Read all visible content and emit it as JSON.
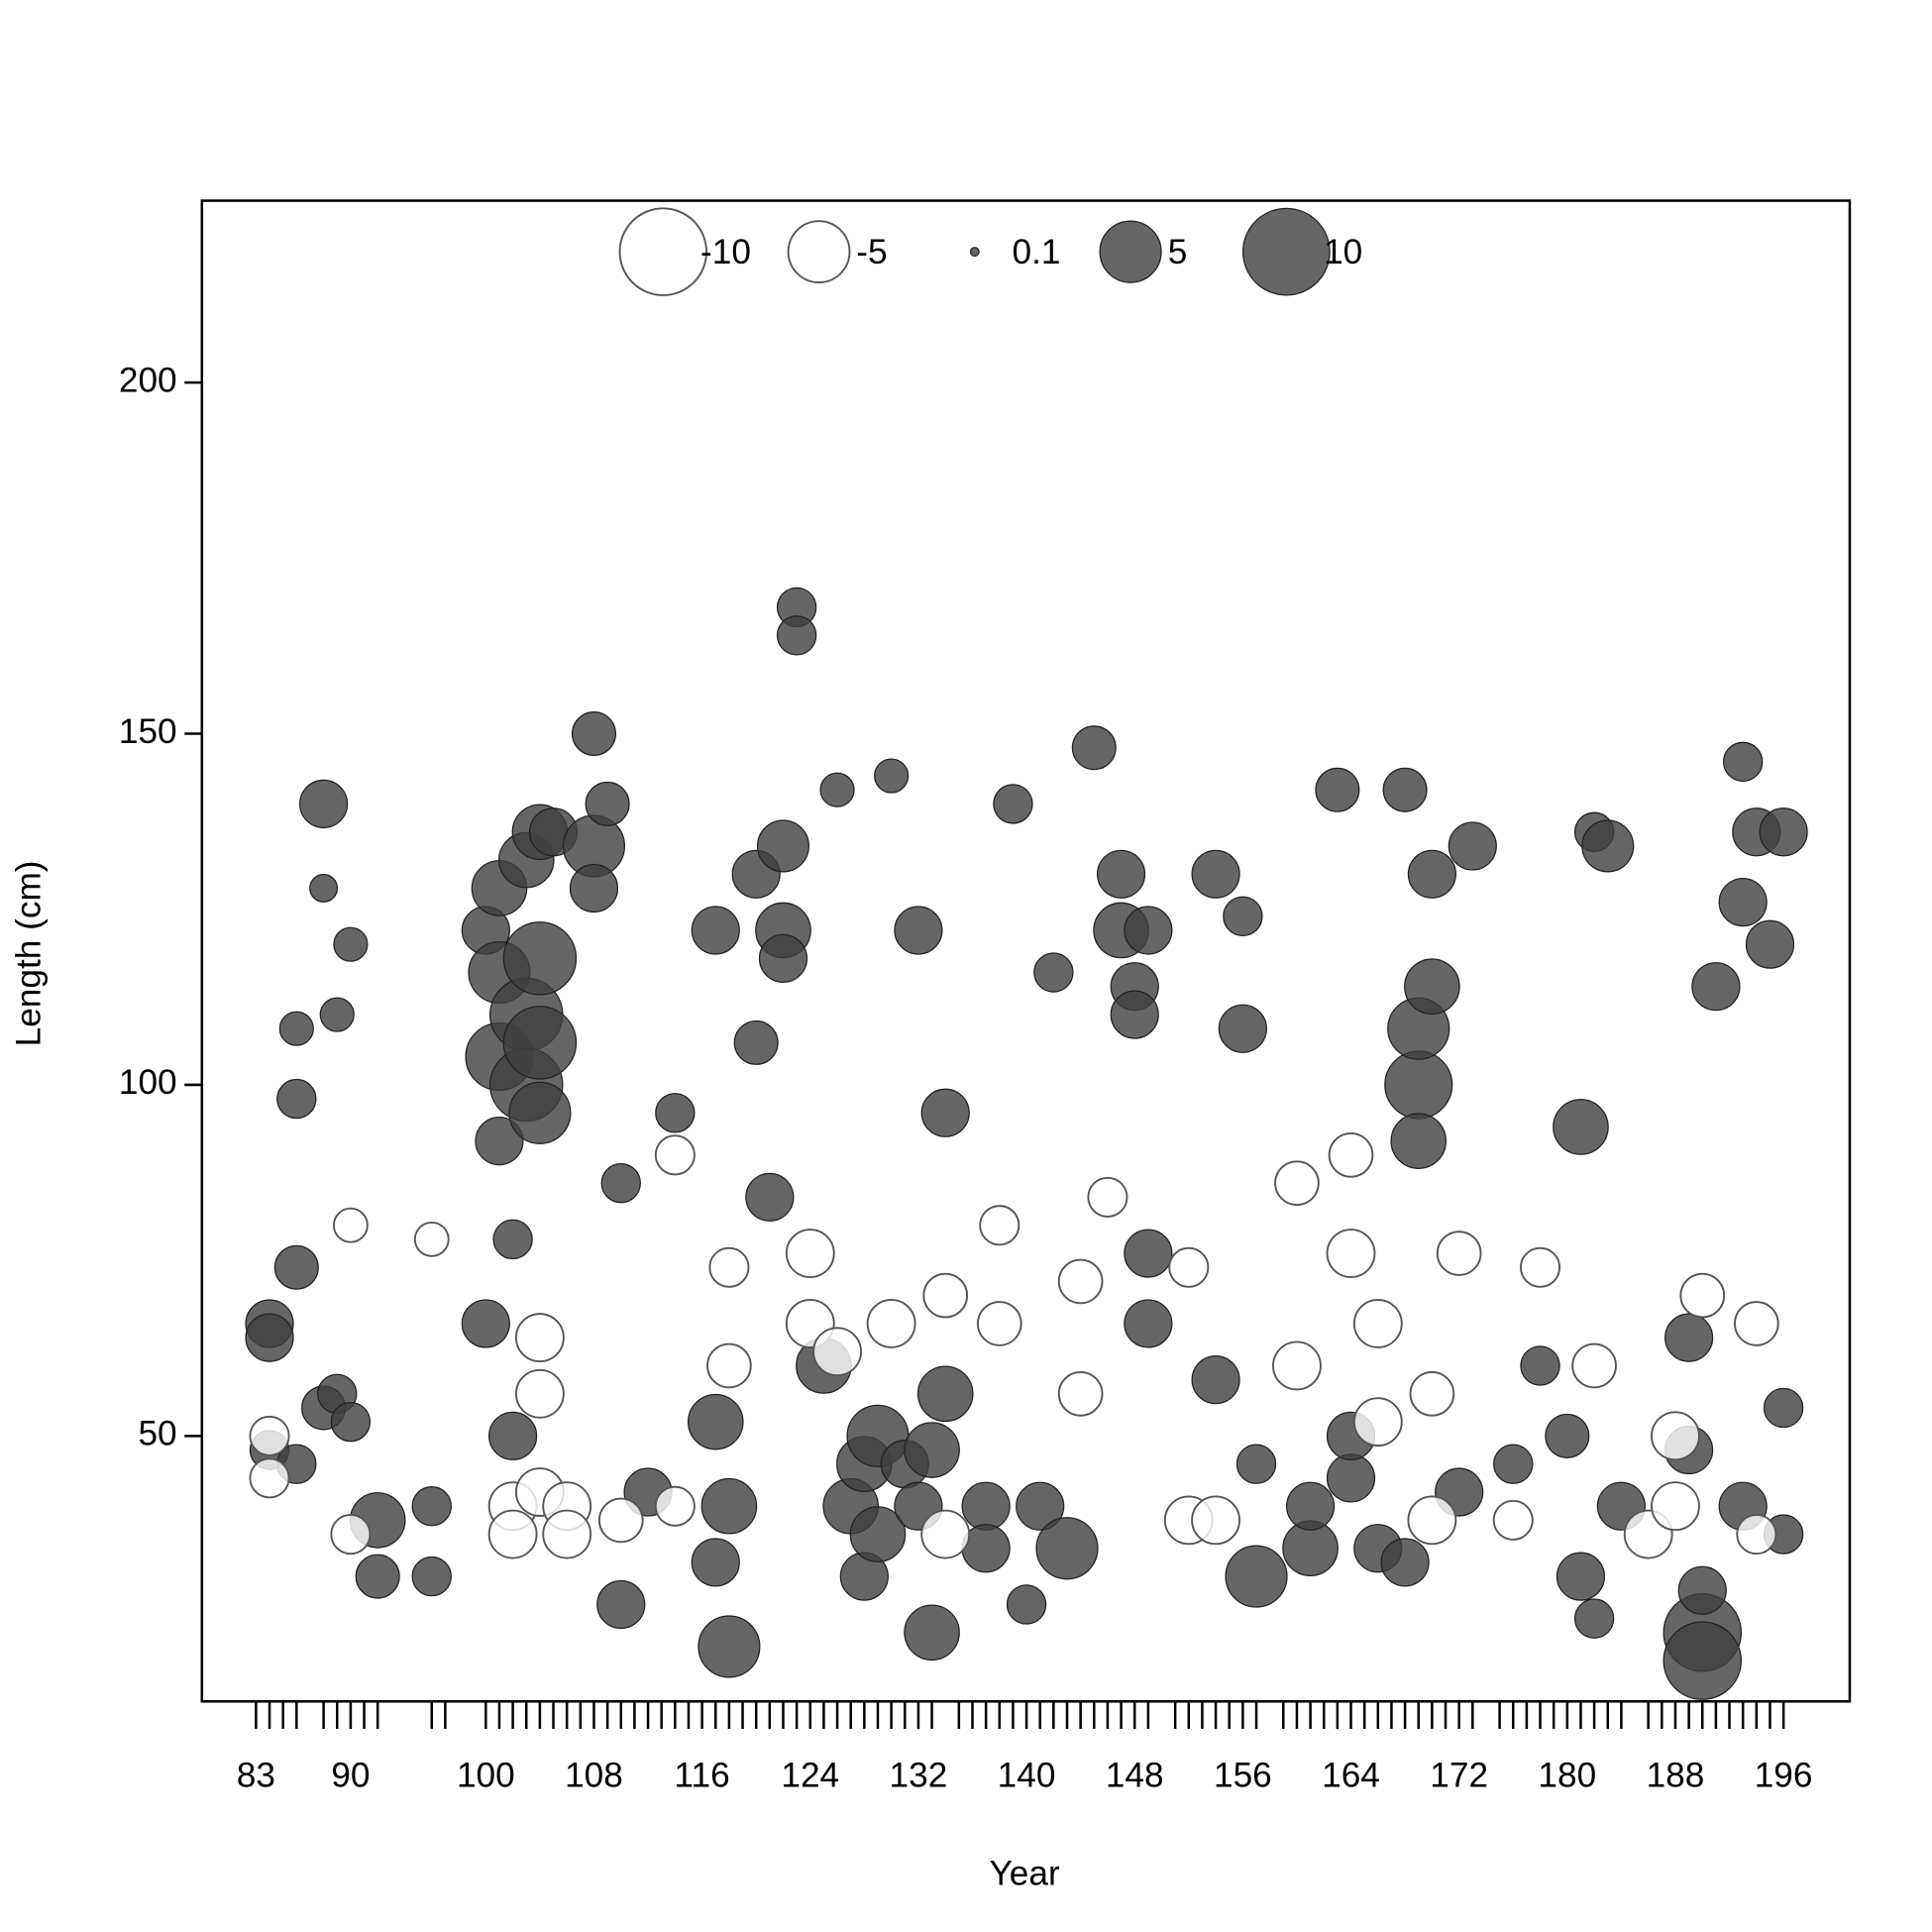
{
  "chart_data": {
    "type": "bubble",
    "xlabel": "Year",
    "ylabel": "Length (cm)",
    "xlim": [
      79,
      200.9
    ],
    "ylim": [
      12.2,
      225.9
    ],
    "yticks": [
      50,
      100,
      150,
      200
    ],
    "xticks": [
      83,
      90,
      100,
      108,
      116,
      124,
      132,
      140,
      148,
      156,
      164,
      172,
      180,
      188,
      196
    ],
    "x_minor_ticks": [
      83,
      84,
      85,
      86,
      88,
      89,
      90,
      91,
      92,
      96,
      97,
      100,
      101,
      102,
      103,
      104,
      105,
      106,
      107,
      108,
      109,
      110,
      111,
      112,
      113,
      114,
      115,
      116,
      117,
      118,
      119,
      120,
      121,
      122,
      123,
      124,
      125,
      126,
      127,
      128,
      129,
      130,
      131,
      132,
      133,
      135,
      136,
      137,
      138,
      139,
      140,
      141,
      142,
      143,
      144,
      145,
      146,
      147,
      148,
      149,
      151,
      152,
      153,
      154,
      155,
      156,
      157,
      159,
      160,
      161,
      162,
      163,
      164,
      165,
      166,
      167,
      168,
      169,
      170,
      171,
      172,
      173,
      175,
      176,
      177,
      178,
      179,
      180,
      181,
      182,
      183,
      184,
      186,
      187,
      188,
      189,
      190,
      191,
      192,
      193,
      194,
      195,
      196
    ],
    "colors": {
      "positive": "#404040",
      "negative": "#ffffff"
    },
    "legend": {
      "values": [
        -10,
        -5,
        0.1,
        5,
        10
      ]
    },
    "x": [
      84,
      84,
      84,
      86,
      86,
      86,
      86,
      88,
      88,
      88,
      89,
      89,
      90,
      90,
      92,
      92,
      96,
      96,
      100,
      100,
      101,
      101,
      101,
      101,
      102,
      102,
      103,
      103,
      103,
      104,
      104,
      104,
      104,
      105,
      108,
      108,
      108,
      109,
      110,
      110,
      112,
      114,
      117,
      117,
      117,
      118,
      118,
      120,
      120,
      121,
      122,
      122,
      122,
      123,
      123,
      125,
      126,
      127,
      128,
      128,
      129,
      129,
      130,
      131,
      132,
      132,
      133,
      133,
      134,
      134,
      137,
      137,
      139,
      140,
      141,
      142,
      143,
      145,
      147,
      147,
      148,
      148,
      149,
      149,
      149,
      154,
      154,
      156,
      156,
      157,
      157,
      161,
      161,
      163,
      164,
      164,
      166,
      168,
      168,
      169,
      169,
      169,
      170,
      170,
      172,
      173,
      176,
      178,
      180,
      181,
      181,
      182,
      182,
      183,
      184,
      189,
      189,
      190,
      190,
      190,
      191,
      193,
      193,
      193,
      194,
      195,
      196,
      196,
      196,
      84,
      84,
      90,
      90,
      96,
      102,
      102,
      104,
      104,
      104,
      106,
      106,
      110,
      114,
      114,
      118,
      118,
      124,
      124,
      126,
      130,
      134,
      134,
      138,
      138,
      144,
      144,
      146,
      152,
      152,
      154,
      160,
      160,
      164,
      164,
      166,
      166,
      170,
      170,
      172,
      176,
      178,
      182,
      186,
      188,
      188,
      190,
      194,
      194
    ],
    "y": [
      66,
      64,
      48,
      98,
      108,
      74,
      46,
      140,
      54,
      128,
      56,
      110,
      120,
      52,
      38,
      30,
      30,
      40,
      122,
      66,
      128,
      116,
      104,
      92,
      50,
      78,
      110,
      100,
      132,
      118,
      106,
      136,
      96,
      136,
      134,
      150,
      128,
      140,
      26,
      86,
      42,
      96,
      122,
      52,
      32,
      20,
      40,
      130,
      106,
      84,
      134,
      122,
      118,
      168,
      164,
      60,
      142,
      40,
      46,
      30,
      50,
      36,
      144,
      46,
      122,
      40,
      48,
      22,
      56,
      96,
      40,
      34,
      140,
      26,
      40,
      116,
      34,
      148,
      130,
      122,
      114,
      110,
      122,
      66,
      76,
      130,
      58,
      108,
      124,
      30,
      46,
      34,
      40,
      142,
      44,
      50,
      34,
      142,
      32,
      100,
      92,
      108,
      130,
      114,
      42,
      134,
      46,
      60,
      50,
      94,
      30,
      136,
      24,
      134,
      40,
      64,
      48,
      22,
      18,
      28,
      114,
      146,
      126,
      40,
      136,
      120,
      136,
      36,
      54,
      50,
      44,
      80,
      36,
      78,
      40,
      36,
      64,
      56,
      42,
      40,
      36,
      38,
      40,
      90,
      60,
      74,
      76,
      66,
      62,
      66,
      70,
      36,
      66,
      80,
      72,
      56,
      84,
      38,
      74,
      38,
      86,
      60,
      90,
      76,
      66,
      52,
      38,
      56,
      76,
      38,
      74,
      60,
      36,
      50,
      40,
      70,
      66,
      36
    ],
    "sizes": [
      3,
      3,
      2,
      2,
      1.5,
      2.5,
      2,
      3,
      2.5,
      1,
      2,
      1.5,
      1.5,
      2,
      4,
      2.5,
      2,
      2,
      3,
      3,
      4,
      5,
      6,
      3,
      3,
      2,
      7,
      7,
      4,
      7,
      7,
      4,
      5,
      3,
      5,
      2.5,
      3,
      2.5,
      3,
      2,
      3,
      2,
      3,
      4,
      3,
      5,
      4,
      3,
      2.5,
      3,
      3.5,
      4,
      3,
      2,
      2,
      4,
      1.5,
      4,
      4,
      3,
      5,
      4,
      1.5,
      3,
      3,
      3,
      4,
      4,
      4,
      3,
      3,
      3,
      2,
      2,
      3,
      2,
      5,
      2.5,
      3,
      4,
      3,
      3,
      3,
      3,
      3,
      3,
      3,
      3,
      2,
      5,
      2,
      4,
      3,
      2.5,
      3,
      3,
      3,
      2.5,
      3,
      6,
      4,
      5,
      3,
      4,
      3,
      3,
      2,
      2,
      2.5,
      4,
      3,
      2,
      2,
      3.5,
      3,
      3,
      3,
      8,
      8,
      3,
      3,
      2,
      3,
      3,
      3,
      3,
      3,
      2,
      2,
      -2,
      -2,
      -1.5,
      -2,
      -1.5,
      -3,
      -3,
      -3,
      -3,
      -3,
      -3,
      -3,
      -2.5,
      -2,
      -2,
      -2.5,
      -2,
      -3,
      -3,
      -3,
      -3,
      -2.5,
      -3,
      -2.5,
      -2,
      -2.5,
      -2.5,
      -2,
      -3,
      -2,
      -3,
      -2.5,
      -3,
      -2.5,
      -3,
      -3,
      -3,
      -3,
      -2.5,
      -2.5,
      -2,
      -2,
      -2.5,
      -3,
      -3,
      -3,
      -2.5,
      -2.5,
      -2
    ]
  }
}
